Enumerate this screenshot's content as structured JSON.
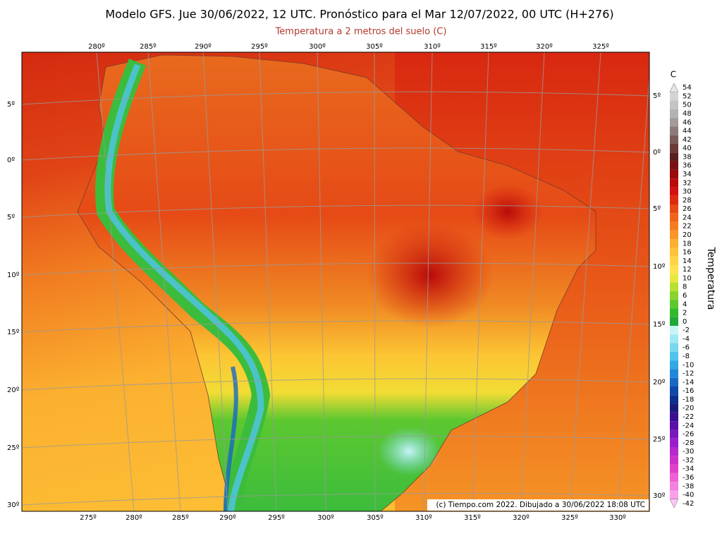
{
  "header": {
    "title": "Modelo GFS. Jue 30/06/2022, 12 UTC. Pronóstico para el Mar 12/07/2022, 00 UTC (H+276)",
    "subtitle": "Temperatura a 2 metros del suelo (C)"
  },
  "map": {
    "top_lon_labels": [
      "280º",
      "285º",
      "290º",
      "295º",
      "300º",
      "305º",
      "310º",
      "315º",
      "320º",
      "325º"
    ],
    "bottom_lon_labels": [
      "275º",
      "280º",
      "285º",
      "290º",
      "295º",
      "300º",
      "305º",
      "310º",
      "315º",
      "320º",
      "325º",
      "330º"
    ],
    "left_lat_labels": [
      "5º",
      "0º",
      "5º",
      "10º",
      "15º",
      "20º",
      "25º",
      "30º"
    ],
    "right_lat_labels": [
      "5º",
      "0º",
      "5º",
      "10º",
      "15º",
      "20º",
      "25º",
      "30º"
    ],
    "credit": "(c) Tiempo.com 2022. Dibujado a 30/06/2022 18:08 UTC"
  },
  "colorbar": {
    "unit": "C",
    "label": "Temperatura",
    "levels": [
      54,
      52,
      50,
      48,
      46,
      44,
      42,
      40,
      38,
      36,
      34,
      32,
      30,
      28,
      26,
      24,
      22,
      20,
      18,
      16,
      14,
      12,
      10,
      8,
      6,
      4,
      2,
      0,
      -2,
      -4,
      -6,
      -8,
      -10,
      -12,
      -14,
      -16,
      -18,
      -20,
      -22,
      -24,
      -26,
      -28,
      -30,
      -32,
      -34,
      -36,
      -38,
      -40,
      -42
    ],
    "colors": [
      "#e6e6e6",
      "#d4d4d4",
      "#c4c4c4",
      "#b3b3b3",
      "#a39a9a",
      "#8c7a7a",
      "#7a5a5a",
      "#6b3a3a",
      "#5c1e1e",
      "#7a1010",
      "#9a0a0a",
      "#b80a0a",
      "#d41010",
      "#e02a10",
      "#e84a14",
      "#f0641a",
      "#f57d20",
      "#fa9628",
      "#fdaf30",
      "#ffc23a",
      "#ffd444",
      "#ffe24e",
      "#e8e83c",
      "#b8e030",
      "#88d42c",
      "#5cc82c",
      "#34b82c",
      "#20a838",
      "#c8f4f8",
      "#a0e8f4",
      "#78d8f0",
      "#50c4ec",
      "#30a8e4",
      "#2088d8",
      "#1868c4",
      "#1048a8",
      "#0c308c",
      "#181c78",
      "#3a1090",
      "#5a10a8",
      "#7a18c0",
      "#9820cc",
      "#b428cc",
      "#cc30c8",
      "#e040c8",
      "#ee60d4",
      "#f480e0",
      "#f8a0ea",
      "#fcc8f4"
    ]
  }
}
